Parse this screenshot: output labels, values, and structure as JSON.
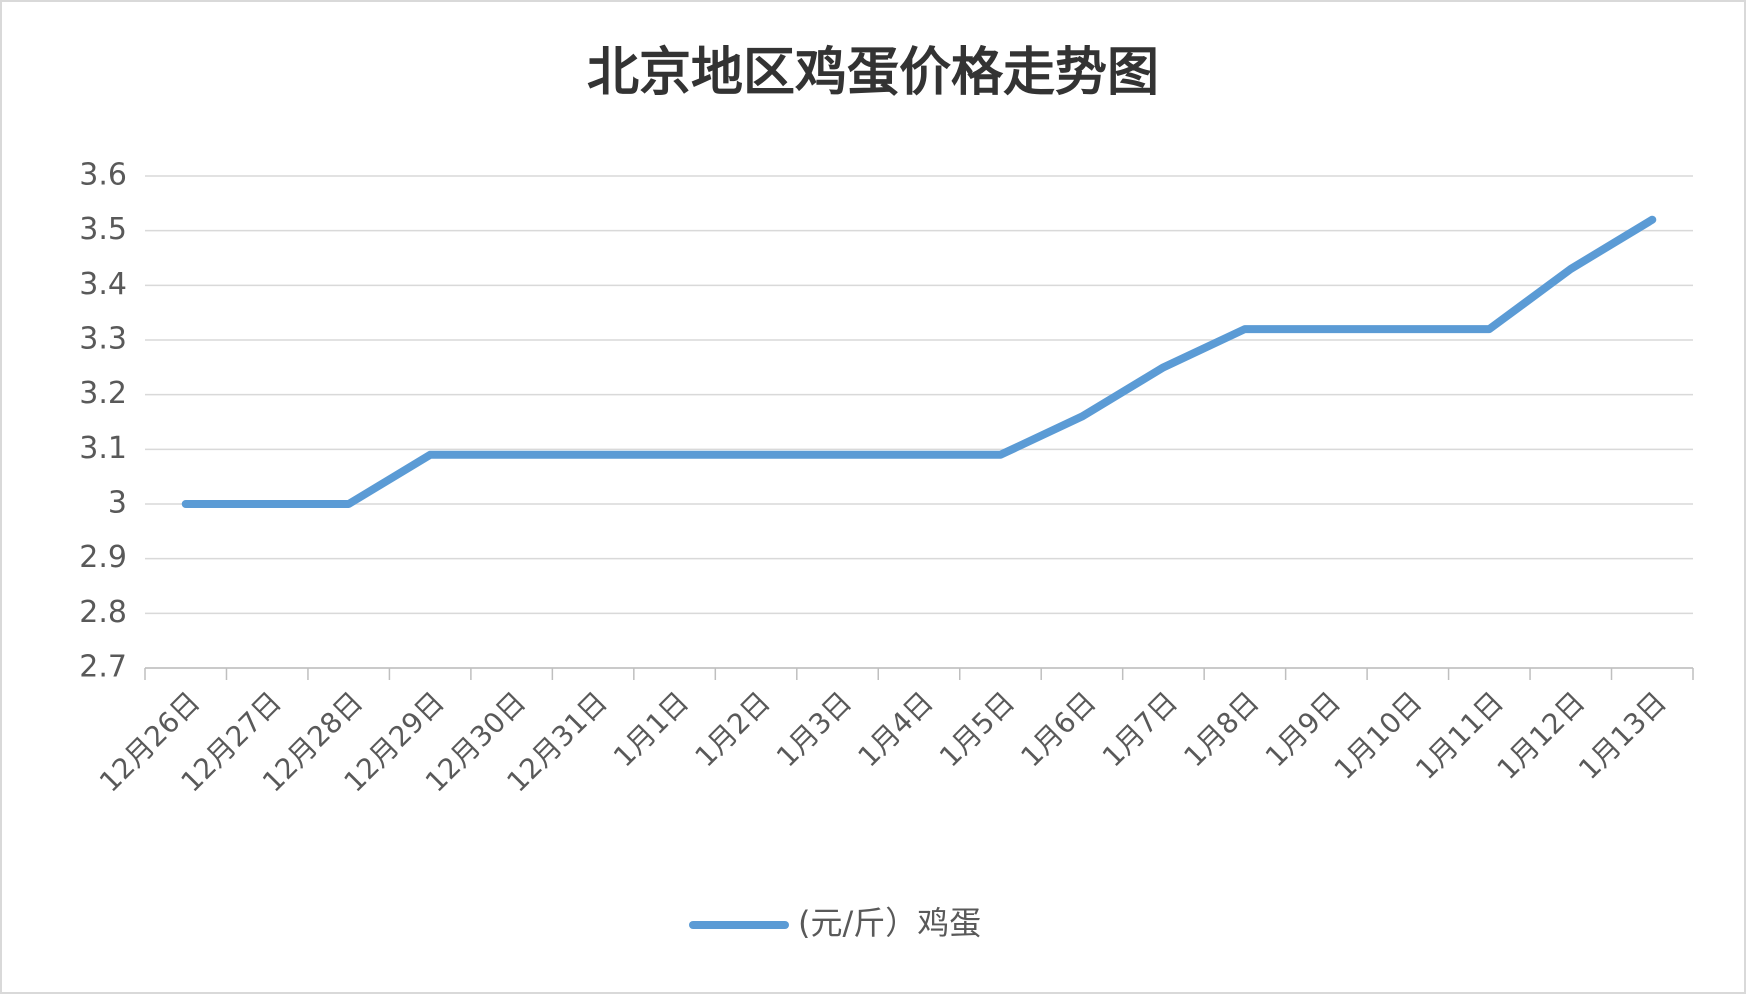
{
  "chart_data": {
    "type": "line",
    "title": "北京地区鸡蛋价格走势图",
    "categories": [
      "12月26日",
      "12月27日",
      "12月28日",
      "12月29日",
      "12月30日",
      "12月31日",
      "1月1日",
      "1月2日",
      "1月3日",
      "1月4日",
      "1月5日",
      "1月6日",
      "1月7日",
      "1月8日",
      "1月9日",
      "1月10日",
      "1月11日",
      "1月12日",
      "1月13日"
    ],
    "series": [
      {
        "name": "(元/斤）鸡蛋",
        "color": "#5b9bd5",
        "values": [
          3,
          3,
          3,
          3.09,
          3.09,
          3.09,
          3.09,
          3.09,
          3.09,
          3.09,
          3.09,
          3.16,
          3.25,
          3.32,
          3.32,
          3.32,
          3.32,
          3.43,
          3.52
        ]
      }
    ],
    "ylim": [
      2.7,
      3.6
    ],
    "yticks": [
      2.7,
      2.8,
      2.9,
      3,
      3.1,
      3.2,
      3.3,
      3.4,
      3.5,
      3.6
    ],
    "grid": true,
    "legend": "bottom"
  }
}
